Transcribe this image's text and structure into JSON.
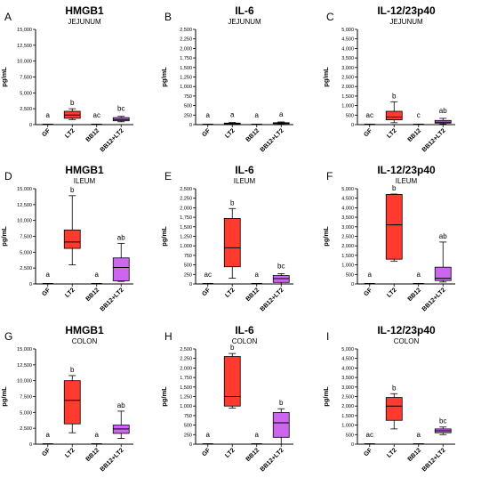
{
  "colors": {
    "lt2": "#ff3b30",
    "combo": "#cc66ee",
    "axis": "#000000"
  },
  "chart_data": [
    {
      "panel": "A",
      "type": "box",
      "title": "HMGB1",
      "subtitle": "JEJUNUM",
      "ylabel": "pg/mL",
      "ylim": [
        0,
        15000
      ],
      "yticks": [
        0,
        2500,
        5000,
        7500,
        10000,
        12500,
        15000
      ],
      "ytick_labels": [
        "0",
        "2,500",
        "5,000",
        "7,500",
        "10,000",
        "12,500",
        "15,000"
      ],
      "categories": [
        "GF",
        "LT2",
        "BB12",
        "BB12+LT2"
      ],
      "boxes": [
        {
          "min": 0,
          "q1": 0,
          "median": 0,
          "q3": 0,
          "max": 0
        },
        {
          "min": 800,
          "q1": 1000,
          "median": 1500,
          "q3": 2100,
          "max": 2500
        },
        {
          "min": 0,
          "q1": 0,
          "median": 0,
          "q3": 0,
          "max": 0
        },
        {
          "min": 450,
          "q1": 600,
          "median": 800,
          "q3": 1100,
          "max": 1300
        }
      ],
      "letters": [
        "a",
        "b",
        "ac",
        "bc"
      ]
    },
    {
      "panel": "B",
      "type": "box",
      "title": "IL-6",
      "subtitle": "JEJUNUM",
      "ylabel": "pg/mL",
      "ylim": [
        0,
        2500
      ],
      "yticks": [
        0,
        250,
        500,
        750,
        1000,
        1250,
        1500,
        1750,
        2000,
        2250,
        2500
      ],
      "ytick_labels": [
        "0",
        "250",
        "500",
        "750",
        "1,000",
        "1,250",
        "1,500",
        "1,750",
        "2,000",
        "2,250",
        "2,500"
      ],
      "categories": [
        "GF",
        "LT2",
        "BB12",
        "BB12+LT2"
      ],
      "boxes": [
        {
          "min": 0,
          "q1": 0,
          "median": 0,
          "q3": 0,
          "max": 0
        },
        {
          "min": 10,
          "q1": 20,
          "median": 30,
          "q3": 40,
          "max": 55
        },
        {
          "min": 0,
          "q1": 0,
          "median": 0,
          "q3": 0,
          "max": 0
        },
        {
          "min": 15,
          "q1": 25,
          "median": 35,
          "q3": 50,
          "max": 70
        }
      ],
      "letters": [
        "a",
        "a",
        "a",
        "a"
      ]
    },
    {
      "panel": "C",
      "type": "box",
      "title": "IL-12/23p40",
      "subtitle": "JEJUNUM",
      "ylabel": "pg/mL",
      "ylim": [
        0,
        5000
      ],
      "yticks": [
        0,
        500,
        1000,
        1500,
        2000,
        2500,
        3000,
        3500,
        4000,
        4500,
        5000
      ],
      "ytick_labels": [
        "0",
        "500",
        "1,000",
        "1,500",
        "2,000",
        "2,500",
        "3,000",
        "3,500",
        "4,000",
        "4,500",
        "5,000"
      ],
      "categories": [
        "GF",
        "LT2",
        "BB12",
        "BB12+LT2"
      ],
      "boxes": [
        {
          "min": 0,
          "q1": 0,
          "median": 0,
          "q3": 0,
          "max": 0
        },
        {
          "min": 100,
          "q1": 250,
          "median": 400,
          "q3": 700,
          "max": 1200
        },
        {
          "min": 0,
          "q1": 0,
          "median": 0,
          "q3": 0,
          "max": 0
        },
        {
          "min": 30,
          "q1": 80,
          "median": 130,
          "q3": 220,
          "max": 330
        }
      ],
      "letters": [
        "ac",
        "b",
        "c",
        "ab"
      ]
    },
    {
      "panel": "D",
      "type": "box",
      "title": "HMGB1",
      "subtitle": "ILEUM",
      "ylabel": "pg/mL",
      "ylim": [
        0,
        15000
      ],
      "yticks": [
        0,
        2500,
        5000,
        7500,
        10000,
        12500,
        15000
      ],
      "ytick_labels": [
        "0",
        "2,500",
        "5,000",
        "7,500",
        "10,000",
        "12,500",
        "15,000"
      ],
      "categories": [
        "GF",
        "LT2",
        "BB12",
        "BB12+LT2"
      ],
      "boxes": [
        {
          "min": 0,
          "q1": 0,
          "median": 0,
          "q3": 0,
          "max": 0
        },
        {
          "min": 3000,
          "q1": 5600,
          "median": 6600,
          "q3": 8500,
          "max": 13900
        },
        {
          "min": 0,
          "q1": 0,
          "median": 0,
          "q3": 0,
          "max": 0
        },
        {
          "min": 400,
          "q1": 500,
          "median": 2600,
          "q3": 4100,
          "max": 6400
        }
      ],
      "letters": [
        "a",
        "b",
        "a",
        "ab"
      ]
    },
    {
      "panel": "E",
      "type": "box",
      "title": "IL-6",
      "subtitle": "ILEUM",
      "ylabel": "pg/mL",
      "ylim": [
        0,
        2500
      ],
      "yticks": [
        0,
        250,
        500,
        750,
        1000,
        1250,
        1500,
        1750,
        2000,
        2250,
        2500
      ],
      "ytick_labels": [
        "0",
        "250",
        "500",
        "750",
        "1,000",
        "1,250",
        "1,500",
        "1,750",
        "2,000",
        "2,250",
        "2,500"
      ],
      "categories": [
        "GF",
        "LT2",
        "BB12",
        "BB12+LT2"
      ],
      "boxes": [
        {
          "min": 0,
          "q1": 0,
          "median": 0,
          "q3": 0,
          "max": 0
        },
        {
          "min": 150,
          "q1": 450,
          "median": 950,
          "q3": 1720,
          "max": 1980
        },
        {
          "min": 0,
          "q1": 0,
          "median": 0,
          "q3": 0,
          "max": 0
        },
        {
          "min": 0,
          "q1": 40,
          "median": 140,
          "q3": 220,
          "max": 270
        }
      ],
      "letters": [
        "ac",
        "b",
        "a",
        "bc"
      ]
    },
    {
      "panel": "F",
      "type": "box",
      "title": "IL-12/23p40",
      "subtitle": "ILEUM",
      "ylabel": "pg/mL",
      "ylim": [
        0,
        5000
      ],
      "yticks": [
        0,
        500,
        1000,
        1500,
        2000,
        2500,
        3000,
        3500,
        4000,
        4500,
        5000
      ],
      "ytick_labels": [
        "0",
        "500",
        "1,000",
        "1,500",
        "2,000",
        "2,500",
        "3,000",
        "3,500",
        "4,000",
        "4,500",
        "5,000"
      ],
      "categories": [
        "GF",
        "LT2",
        "BB12",
        "BB12+LT2"
      ],
      "boxes": [
        {
          "min": 0,
          "q1": 0,
          "median": 0,
          "q3": 0,
          "max": 0
        },
        {
          "min": 1200,
          "q1": 1300,
          "median": 3100,
          "q3": 4700,
          "max": 4720
        },
        {
          "min": 0,
          "q1": 0,
          "median": 0,
          "q3": 0,
          "max": 0
        },
        {
          "min": 100,
          "q1": 180,
          "median": 300,
          "q3": 880,
          "max": 2200
        }
      ],
      "letters": [
        "a",
        "b",
        "a",
        "ab"
      ]
    },
    {
      "panel": "G",
      "type": "box",
      "title": "HMGB1",
      "subtitle": "COLON",
      "ylabel": "pg/mL",
      "ylim": [
        0,
        15000
      ],
      "yticks": [
        0,
        2500,
        5000,
        7500,
        10000,
        12500,
        15000
      ],
      "ytick_labels": [
        "0",
        "2,500",
        "5,000",
        "7,500",
        "10,000",
        "12,500",
        "15,000"
      ],
      "categories": [
        "GF",
        "LT2",
        "BB12",
        "BB12+LT2"
      ],
      "boxes": [
        {
          "min": 0,
          "q1": 0,
          "median": 0,
          "q3": 0,
          "max": 0
        },
        {
          "min": 1800,
          "q1": 3200,
          "median": 6900,
          "q3": 10000,
          "max": 10800
        },
        {
          "min": 0,
          "q1": 0,
          "median": 0,
          "q3": 0,
          "max": 0
        },
        {
          "min": 900,
          "q1": 1700,
          "median": 2400,
          "q3": 3000,
          "max": 5200
        }
      ],
      "letters": [
        "a",
        "b",
        "a",
        "ab"
      ]
    },
    {
      "panel": "H",
      "type": "box",
      "title": "IL-6",
      "subtitle": "COLON",
      "ylabel": "pg/mL",
      "ylim": [
        0,
        2500
      ],
      "yticks": [
        0,
        250,
        500,
        750,
        1000,
        1250,
        1500,
        1750,
        2000,
        2250,
        2500
      ],
      "ytick_labels": [
        "0",
        "250",
        "500",
        "750",
        "1,000",
        "1,250",
        "1,500",
        "1,750",
        "2,000",
        "2,250",
        "2,500"
      ],
      "categories": [
        "GF",
        "LT2",
        "BB12",
        "BB12+LT2"
      ],
      "boxes": [
        {
          "min": 0,
          "q1": 0,
          "median": 0,
          "q3": 0,
          "max": 0
        },
        {
          "min": 950,
          "q1": 1000,
          "median": 1250,
          "q3": 2300,
          "max": 2380
        },
        {
          "min": 0,
          "q1": 0,
          "median": 0,
          "q3": 0,
          "max": 0
        },
        {
          "min": 0,
          "q1": 180,
          "median": 560,
          "q3": 830,
          "max": 930
        }
      ],
      "letters": [
        "a",
        "b",
        "a",
        "b"
      ]
    },
    {
      "panel": "I",
      "type": "box",
      "title": "IL-12/23p40",
      "subtitle": "COLON",
      "ylabel": "pg/mL",
      "ylim": [
        0,
        5000
      ],
      "yticks": [
        0,
        500,
        1000,
        1500,
        2000,
        2500,
        3000,
        3500,
        4000,
        4500,
        5000
      ],
      "ytick_labels": [
        "0",
        "500",
        "1,000",
        "1,500",
        "2,000",
        "2,500",
        "3,000",
        "3,500",
        "4,000",
        "4,500",
        "5,000"
      ],
      "categories": [
        "GF",
        "LT2",
        "BB12",
        "BB12+LT2"
      ],
      "boxes": [
        {
          "min": 0,
          "q1": 0,
          "median": 0,
          "q3": 0,
          "max": 0
        },
        {
          "min": 800,
          "q1": 1250,
          "median": 2000,
          "q3": 2450,
          "max": 2650
        },
        {
          "min": 0,
          "q1": 0,
          "median": 0,
          "q3": 0,
          "max": 0
        },
        {
          "min": 500,
          "q1": 600,
          "median": 700,
          "q3": 800,
          "max": 900
        }
      ],
      "letters": [
        "ac",
        "b",
        "a",
        "bc"
      ]
    }
  ]
}
